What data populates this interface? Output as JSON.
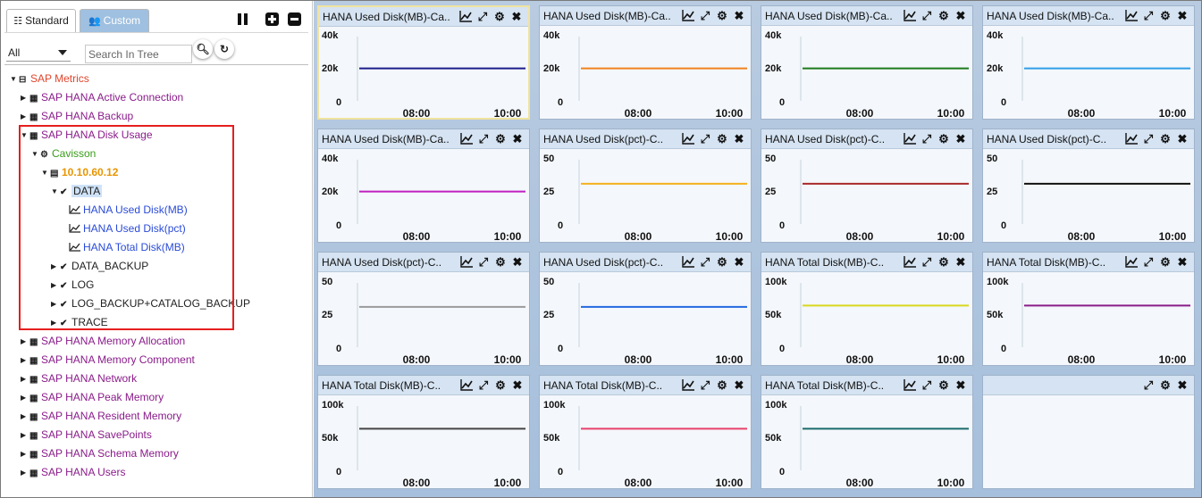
{
  "tabs": {
    "standard": {
      "label": "Standard",
      "icon": "list-icon"
    },
    "custom": {
      "label": "Custom",
      "icon": "add-user-icon"
    }
  },
  "toolbar": {
    "pause_icon": "pause-icon",
    "expand_icon": "plus-square-icon",
    "collapse_icon": "minus-square-icon"
  },
  "filter": {
    "selected": "All"
  },
  "search": {
    "placeholder": "Search In Tree",
    "value": ""
  },
  "tree": {
    "root": "SAP Metrics",
    "groups": [
      {
        "label": "SAP HANA Active Connection",
        "expanded": false
      },
      {
        "label": "SAP HANA Backup",
        "expanded": false
      },
      {
        "label": "SAP HANA Disk Usage",
        "expanded": true
      },
      {
        "label": "SAP HANA Memory Allocation",
        "expanded": false
      },
      {
        "label": "SAP HANA Memory Component",
        "expanded": false
      },
      {
        "label": "SAP HANA Network",
        "expanded": false
      },
      {
        "label": "SAP HANA Peak Memory",
        "expanded": false
      },
      {
        "label": "SAP HANA Resident Memory",
        "expanded": false
      },
      {
        "label": "SAP HANA SavePoints",
        "expanded": false
      },
      {
        "label": "SAP HANA Schema Memory",
        "expanded": false
      },
      {
        "label": "SAP HANA Users",
        "expanded": false
      }
    ],
    "tier": "Cavisson",
    "server": "10.10.60.12",
    "data_node": "DATA",
    "metrics": [
      "HANA Used Disk(MB)",
      "HANA Used Disk(pct)",
      "HANA Total Disk(MB)"
    ],
    "other_nodes": [
      "DATA_BACKUP",
      "LOG",
      "LOG_BACKUP+CATALOG_BACKUP",
      "TRACE"
    ]
  },
  "panel_tools": [
    "line-chart-icon",
    "expand-icon",
    "gear-icon",
    "close-icon"
  ],
  "chart_data": [
    {
      "type": "line",
      "title": "HANA Used Disk(MB)-Ca..",
      "yticks": [
        "40k",
        "20k",
        "0"
      ],
      "ylim": [
        0,
        40000
      ],
      "xticks": [
        "08:00",
        "10:00"
      ],
      "series": [
        {
          "color": "#1c1c8a",
          "values": [
            21500,
            21500
          ]
        }
      ]
    },
    {
      "type": "line",
      "title": "HANA Used Disk(MB)-Ca..",
      "yticks": [
        "40k",
        "20k",
        "0"
      ],
      "ylim": [
        0,
        40000
      ],
      "xticks": [
        "08:00",
        "10:00"
      ],
      "series": [
        {
          "color": "#f0821e",
          "values": [
            21500,
            21500
          ]
        }
      ]
    },
    {
      "type": "line",
      "title": "HANA Used Disk(MB)-Ca..",
      "yticks": [
        "40k",
        "20k",
        "0"
      ],
      "ylim": [
        0,
        40000
      ],
      "xticks": [
        "08:00",
        "10:00"
      ],
      "series": [
        {
          "color": "#1c7a1c",
          "values": [
            21500,
            21500
          ]
        }
      ]
    },
    {
      "type": "line",
      "title": "HANA Used Disk(MB)-Ca..",
      "yticks": [
        "40k",
        "20k",
        "0"
      ],
      "ylim": [
        0,
        40000
      ],
      "xticks": [
        "08:00",
        "10:00"
      ],
      "series": [
        {
          "color": "#2f9ee8",
          "values": [
            21500,
            21500
          ]
        }
      ]
    },
    {
      "type": "line",
      "title": "HANA Used Disk(MB)-Ca..",
      "yticks": [
        "40k",
        "20k",
        "0"
      ],
      "ylim": [
        0,
        40000
      ],
      "xticks": [
        "08:00",
        "10:00"
      ],
      "series": [
        {
          "color": "#c020c0",
          "values": [
            21500,
            21500
          ]
        }
      ]
    },
    {
      "type": "line",
      "title": "HANA Used Disk(pct)-C..",
      "yticks": [
        "50",
        "25",
        "0"
      ],
      "ylim": [
        0,
        50
      ],
      "xticks": [
        "08:00",
        "10:00"
      ],
      "series": [
        {
          "color": "#f5b21e",
          "values": [
            32.5,
            32.5
          ]
        }
      ]
    },
    {
      "type": "line",
      "title": "HANA Used Disk(pct)-C..",
      "yticks": [
        "50",
        "25",
        "0"
      ],
      "ylim": [
        0,
        50
      ],
      "xticks": [
        "08:00",
        "10:00"
      ],
      "series": [
        {
          "color": "#a8282a",
          "values": [
            32.5,
            32.5
          ]
        }
      ]
    },
    {
      "type": "line",
      "title": "HANA Used Disk(pct)-C..",
      "yticks": [
        "50",
        "25",
        "0"
      ],
      "ylim": [
        0,
        50
      ],
      "xticks": [
        "08:00",
        "10:00"
      ],
      "series": [
        {
          "color": "#111111",
          "values": [
            32.5,
            32.5
          ]
        }
      ]
    },
    {
      "type": "line",
      "title": "HANA Used Disk(pct)-C..",
      "yticks": [
        "50",
        "25",
        "0"
      ],
      "ylim": [
        0,
        50
      ],
      "xticks": [
        "08:00",
        "10:00"
      ],
      "series": [
        {
          "color": "#9a9a9a",
          "values": [
            32.5,
            32.5
          ]
        }
      ]
    },
    {
      "type": "line",
      "title": "HANA Used Disk(pct)-C..",
      "yticks": [
        "50",
        "25",
        "0"
      ],
      "ylim": [
        0,
        50
      ],
      "xticks": [
        "08:00",
        "10:00"
      ],
      "series": [
        {
          "color": "#2468e0",
          "values": [
            32.5,
            32.5
          ]
        }
      ]
    },
    {
      "type": "line",
      "title": "HANA Total Disk(MB)-C..",
      "yticks": [
        "100k",
        "50k",
        "0"
      ],
      "ylim": [
        0,
        100000
      ],
      "xticks": [
        "08:00",
        "10:00"
      ],
      "series": [
        {
          "color": "#d8d81e",
          "values": [
            67000,
            67000
          ]
        }
      ]
    },
    {
      "type": "line",
      "title": "HANA Total Disk(MB)-C..",
      "yticks": [
        "100k",
        "50k",
        "0"
      ],
      "ylim": [
        0,
        100000
      ],
      "xticks": [
        "08:00",
        "10:00"
      ],
      "series": [
        {
          "color": "#8a1c8a",
          "values": [
            67000,
            67000
          ]
        }
      ]
    },
    {
      "type": "line",
      "title": "HANA Total Disk(MB)-C..",
      "yticks": [
        "100k",
        "50k",
        "0"
      ],
      "ylim": [
        0,
        100000
      ],
      "xticks": [
        "08:00",
        "10:00"
      ],
      "series": [
        {
          "color": "#444444",
          "values": [
            67000,
            67000
          ]
        }
      ]
    },
    {
      "type": "line",
      "title": "HANA Total Disk(MB)-C..",
      "yticks": [
        "100k",
        "50k",
        "0"
      ],
      "ylim": [
        0,
        100000
      ],
      "xticks": [
        "08:00",
        "10:00"
      ],
      "series": [
        {
          "color": "#e8406a",
          "values": [
            67000,
            67000
          ]
        }
      ]
    },
    {
      "type": "line",
      "title": "HANA Total Disk(MB)-C..",
      "yticks": [
        "100k",
        "50k",
        "0"
      ],
      "ylim": [
        0,
        100000
      ],
      "xticks": [
        "08:00",
        "10:00"
      ],
      "series": [
        {
          "color": "#1a6b6b",
          "values": [
            67000,
            67000
          ]
        }
      ]
    },
    {
      "type": "line",
      "title": "",
      "empty": true
    }
  ]
}
